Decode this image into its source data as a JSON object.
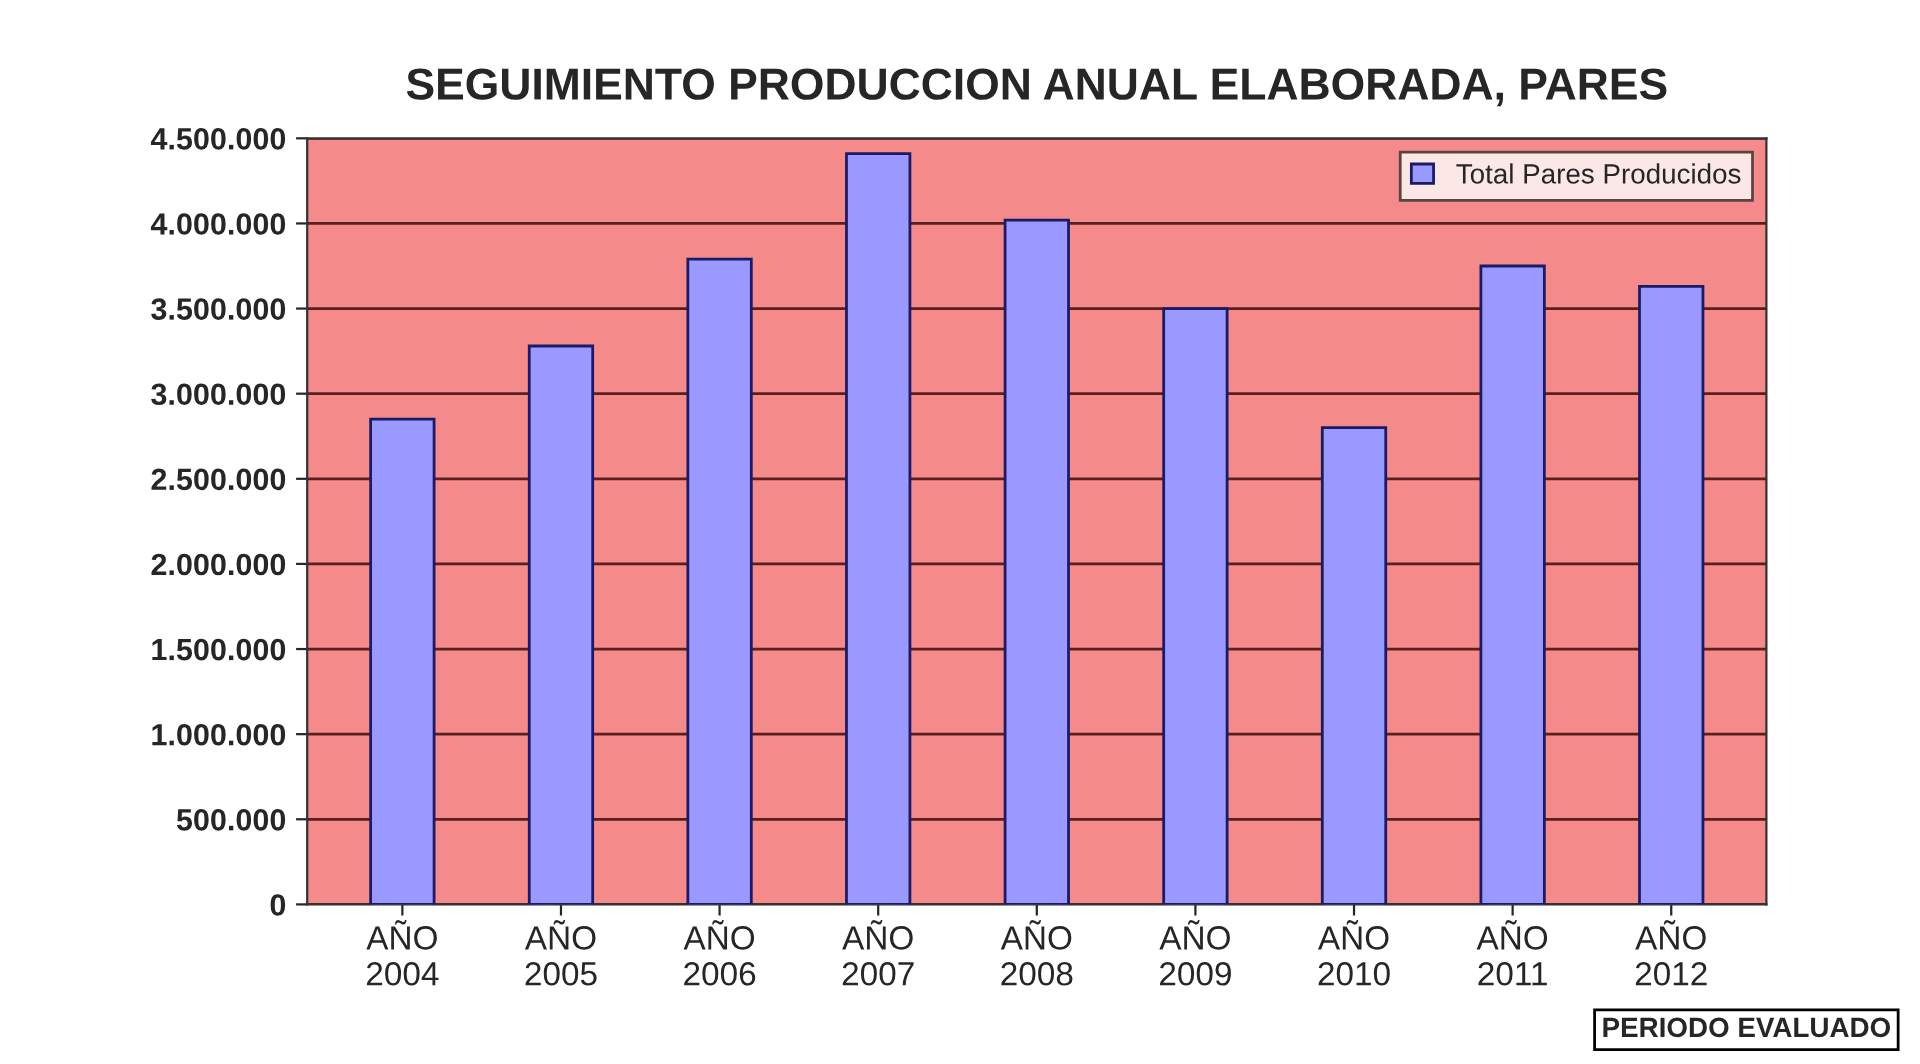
{
  "chart_data": {
    "type": "bar",
    "title": "SEGUIMIENTO PRODUCCION ANUAL ELABORADA, PARES",
    "categories": [
      "AÑO\n2004",
      "AÑO\n2005",
      "AÑO\n2006",
      "AÑO\n2007",
      "AÑO\n2008",
      "AÑO\n2009",
      "AÑO\n2010",
      "AÑO\n2011",
      "AÑO\n2012"
    ],
    "series": [
      {
        "name": "Total Pares Producidos",
        "color": "#9999ff",
        "values": [
          2850000,
          3280000,
          3790000,
          4410000,
          4020000,
          3500000,
          2800000,
          3750000,
          3630000
        ]
      }
    ],
    "ylim": [
      0,
      4500000
    ],
    "yticks": [
      {
        "value": 0,
        "label": "0"
      },
      {
        "value": 500000,
        "label": "500.000"
      },
      {
        "value": 1000000,
        "label": "1.000.000"
      },
      {
        "value": 1500000,
        "label": "1.500.000"
      },
      {
        "value": 2000000,
        "label": "2.000.000"
      },
      {
        "value": 2500000,
        "label": "2.500.000"
      },
      {
        "value": 3000000,
        "label": "3.000.000"
      },
      {
        "value": 3500000,
        "label": "3.500.000"
      },
      {
        "value": 4000000,
        "label": "4.000.000"
      },
      {
        "value": 4500000,
        "label": "4.500.000"
      }
    ],
    "grid": "y",
    "legend": "top right",
    "annotations": [
      "PERIODO EVALUADO"
    ]
  }
}
